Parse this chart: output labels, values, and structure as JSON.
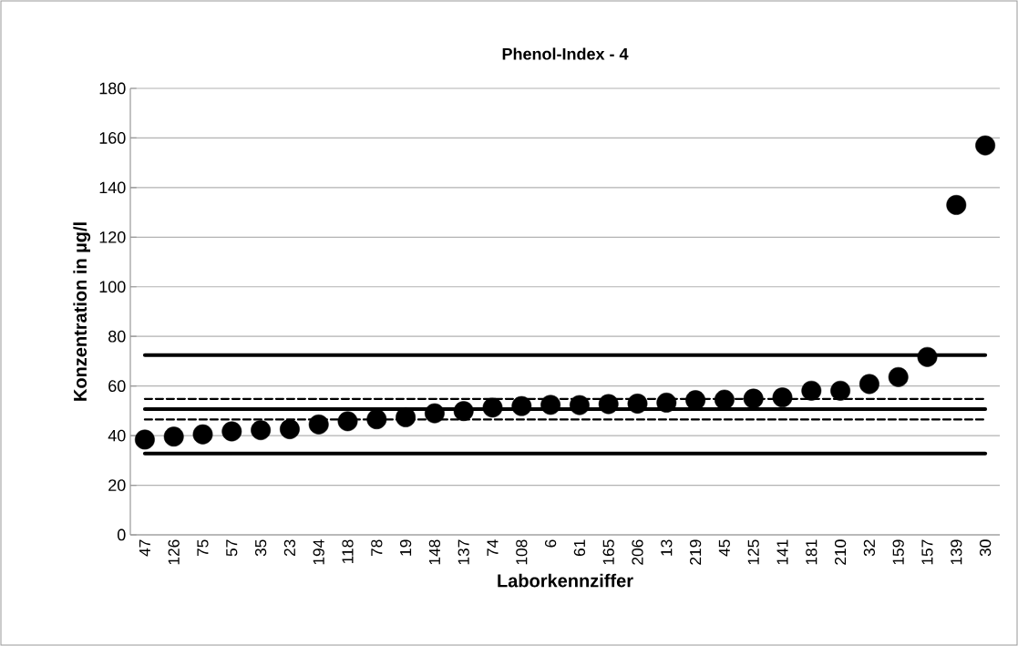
{
  "chart_data": {
    "type": "scatter",
    "title": "Phenol-Index - 4",
    "xlabel": "Laborkennziffer",
    "ylabel": "Konzentration in µg/l",
    "categories": [
      "47",
      "126",
      "75",
      "57",
      "35",
      "23",
      "194",
      "118",
      "78",
      "19",
      "148",
      "137",
      "74",
      "108",
      "6",
      "61",
      "165",
      "206",
      "13",
      "219",
      "45",
      "125",
      "141",
      "181",
      "210",
      "32",
      "159",
      "157",
      "139",
      "30"
    ],
    "values": [
      38.4,
      39.6,
      40.5,
      41.7,
      42.2,
      42.6,
      44.5,
      45.8,
      46.6,
      47.4,
      49.0,
      49.9,
      51.3,
      51.9,
      52.4,
      52.3,
      52.7,
      52.9,
      53.3,
      54.3,
      54.5,
      54.9,
      55.4,
      58.1,
      58.1,
      60.8,
      63.6,
      71.7,
      133.0,
      157.0
    ],
    "color": "#000000",
    "marker": "circle",
    "ylim": [
      0,
      180
    ],
    "yticks": [
      0,
      20,
      40,
      60,
      80,
      100,
      120,
      140,
      160,
      180
    ],
    "grid": "y",
    "ref_lines": [
      {
        "axis": "y",
        "value": 72.5,
        "color": "#000000",
        "line_style": "solid"
      },
      {
        "axis": "y",
        "value": 54.8,
        "color": "#000000",
        "line_style": "dashed"
      },
      {
        "axis": "y",
        "value": 50.7,
        "color": "#000000",
        "line_style": "solid"
      },
      {
        "axis": "y",
        "value": 46.5,
        "color": "#000000",
        "line_style": "dashed"
      },
      {
        "axis": "y",
        "value": 32.8,
        "color": "#000000",
        "line_style": "solid"
      }
    ]
  }
}
